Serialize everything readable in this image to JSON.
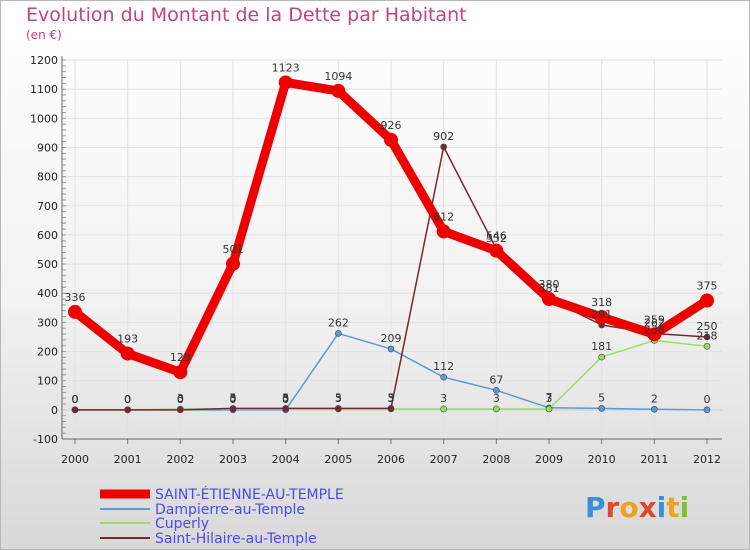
{
  "chart_data": {
    "type": "line",
    "title": "Evolution du Montant de la Dette par Habitant",
    "subtitle": "(en €)",
    "xlabel": "",
    "ylabel": "",
    "ylim": [
      -100,
      1200
    ],
    "yticks": [
      -100,
      0,
      100,
      200,
      300,
      400,
      500,
      600,
      700,
      800,
      900,
      1000,
      1100,
      1200
    ],
    "categories": [
      "2000",
      "2001",
      "2002",
      "2003",
      "2004",
      "2005",
      "2006",
      "2007",
      "2008",
      "2009",
      "2010",
      "2011",
      "2012"
    ],
    "legend_position": "bottom-left",
    "series": [
      {
        "name": "SAINT-ÉTIENNE-AU-TEMPLE",
        "color": "#ee0000",
        "values": [
          336,
          193,
          129,
          501,
          1123,
          1094,
          926,
          612,
          546,
          380,
          318,
          259,
          375
        ],
        "labels": [
          "336",
          "193",
          "129",
          "501",
          "1123",
          "1094",
          "926",
          "612",
          "546",
          "380",
          "318",
          "259",
          "375"
        ]
      },
      {
        "name": "Dampierre-au-Temple",
        "color": "#5b9bd5",
        "values": [
          0,
          0,
          0,
          0,
          0,
          262,
          209,
          112,
          67,
          7,
          5,
          2,
          0
        ],
        "labels": [
          "0",
          "0",
          "0",
          "0",
          "0",
          "262",
          "209",
          "112",
          "67",
          "7",
          "5",
          "2",
          "0"
        ]
      },
      {
        "name": "Cuperly",
        "color": "#99dd66",
        "values": [
          0,
          0,
          3,
          3,
          3,
          3,
          3,
          3,
          3,
          3,
          181,
          238,
          218
        ],
        "labels": [
          "0",
          "0",
          "3",
          "3",
          "3",
          "3",
          "3",
          "3",
          "3",
          "3",
          "181",
          "238",
          "218"
        ]
      },
      {
        "name": "Saint-Hilaire-au-Temple",
        "color": "#7a2530",
        "values": [
          0,
          0,
          0,
          5,
          5,
          5,
          5,
          902,
          552,
          381,
          291,
          262,
          250
        ],
        "labels": [
          "0",
          "0",
          "0",
          "5",
          "5",
          "5",
          "5",
          "902",
          "552",
          "381",
          "291",
          "262",
          "250"
        ]
      }
    ]
  },
  "branding": {
    "logo_text": "Proxiti"
  }
}
